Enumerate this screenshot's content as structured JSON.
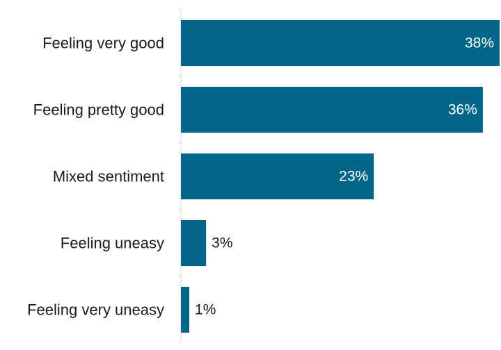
{
  "chart_data": {
    "type": "bar",
    "orientation": "horizontal",
    "categories": [
      "Feeling very good",
      "Feeling pretty good",
      "Mixed sentiment",
      "Feeling uneasy",
      "Feeling very uneasy"
    ],
    "values": [
      38,
      36,
      23,
      3,
      1
    ],
    "value_labels": [
      "38%",
      "36%",
      "23%",
      "3%",
      "1%"
    ],
    "xlim": [
      0,
      38
    ],
    "grid": false,
    "legend": "none",
    "bar_color": "#02668b",
    "label_inside_color": "#ffffff",
    "label_outside_color": "#1a1a1a"
  }
}
